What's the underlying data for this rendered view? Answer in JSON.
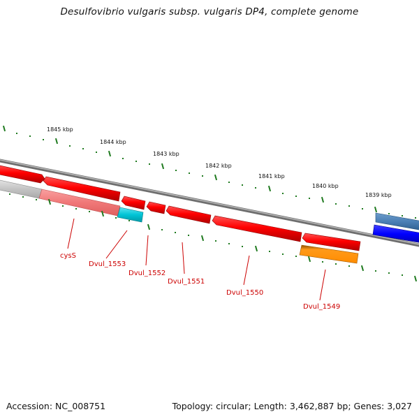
{
  "title": "Desulfovibrio vulgaris subsp. vulgaris DP4, complete genome",
  "accession_text": "Accession: NC_008751",
  "summary_text": "Topology: circular; Length: 3,462,887 bp; Genes: 3,027",
  "scale_labels": [
    "1845 kbp",
    "1844 kbp",
    "1843 kbp",
    "1842 kbp",
    "1841 kbp",
    "1840 kbp",
    "1839 kbp"
  ],
  "gene_labels": [
    "cysS",
    "Dvul_1553",
    "Dvul_1552",
    "Dvul_1551",
    "Dvul_1550",
    "Dvul_1549"
  ],
  "colors": {
    "backbone": "#7f7f7f",
    "tick": "#1f7a1f",
    "gene_red": "#ff0000",
    "gene_faded_red": "#f08080",
    "gene_grey": "#bdbdbd",
    "gene_cyan": "#00bcd4",
    "gene_orange": "#ff8c00",
    "gene_steelblue": "#4a7fb5",
    "gene_blue": "#0000ff",
    "label_red": "#cc0000"
  }
}
